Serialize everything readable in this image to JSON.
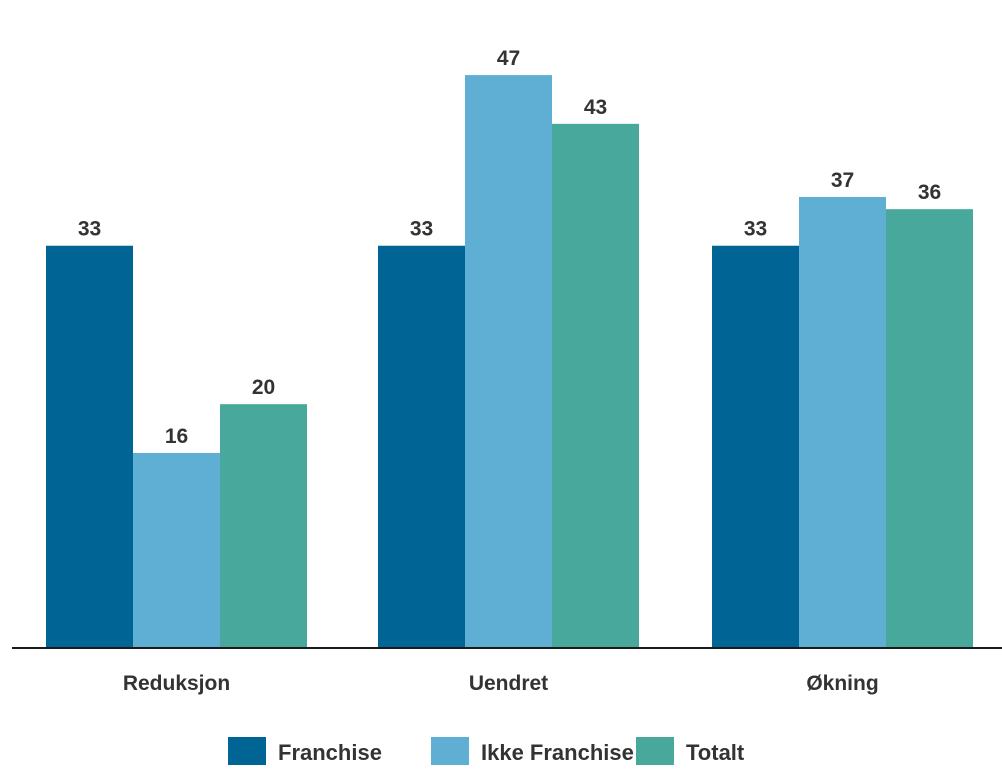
{
  "chart_data": {
    "type": "bar",
    "title": "",
    "xlabel": "",
    "ylabel": "",
    "categories": [
      "Reduksjon",
      "Uendret",
      "Økning"
    ],
    "series": [
      {
        "name": "Franchise",
        "values": [
          33,
          33,
          33
        ],
        "color": "#006595"
      },
      {
        "name": "Ikke Franchise",
        "values": [
          16,
          47,
          37
        ],
        "color": "#5faed3"
      },
      {
        "name": "Totalt",
        "values": [
          20,
          43,
          36
        ],
        "color": "#48a89c"
      }
    ],
    "ylim": [
      0,
      47
    ],
    "grid": false,
    "legend": "bottom-center",
    "data_labels": true
  }
}
